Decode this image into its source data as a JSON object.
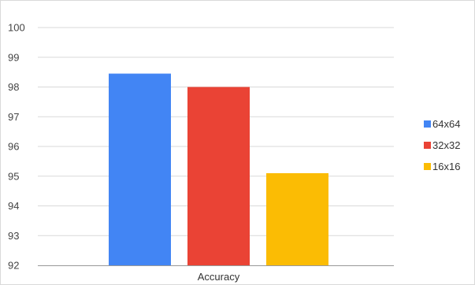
{
  "chart_data": {
    "type": "bar",
    "title": "",
    "xlabel": "",
    "ylabel": "",
    "categories": [
      "Accuracy"
    ],
    "series": [
      {
        "name": "64x64",
        "values": [
          98.45
        ],
        "color": "#4285f4"
      },
      {
        "name": "32x32",
        "values": [
          98.0
        ],
        "color": "#ea4335"
      },
      {
        "name": "16x16",
        "values": [
          95.1
        ],
        "color": "#fbbc04"
      }
    ],
    "ylim": [
      92,
      100
    ],
    "yticks": [
      "92",
      "93",
      "94",
      "95",
      "96",
      "97",
      "98",
      "99",
      "100"
    ],
    "grid": true,
    "legend_position": "right"
  }
}
